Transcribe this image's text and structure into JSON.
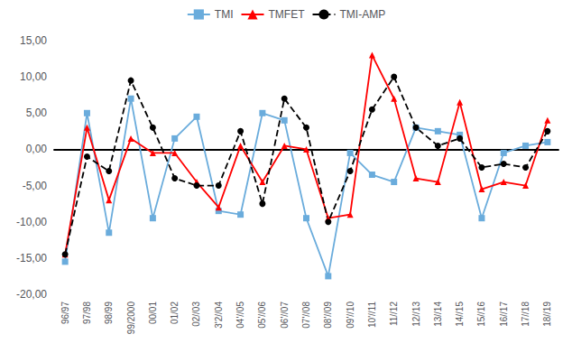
{
  "chart_data": {
    "type": "line",
    "categories": [
      "96/97",
      "97/98",
      "98/99",
      "99/2000",
      "00/01",
      "01/02",
      "02//03",
      "3'2//04",
      "04'//05",
      "05'//06",
      "06'//07",
      "07'//08",
      "08'//09",
      "09'//10",
      "10'//11",
      "11//12",
      "12//13",
      "13//14",
      "14//15",
      "15//16",
      "16//17",
      "17//18",
      "18//19"
    ],
    "series": [
      {
        "name": "TMI",
        "color": "#6aacdc",
        "marker": "square",
        "line_style": "solid",
        "values": [
          -15.5,
          5.0,
          -11.5,
          7.0,
          -9.5,
          1.5,
          4.5,
          -8.5,
          -9.0,
          5.0,
          4.0,
          -9.5,
          -17.5,
          -0.5,
          -3.5,
          -4.5,
          3.0,
          2.5,
          2.0,
          -9.5,
          -0.5,
          0.5,
          1.0
        ]
      },
      {
        "name": "TMFET",
        "color": "#ff0000",
        "marker": "triangle",
        "line_style": "solid",
        "values": [
          -14.5,
          3.0,
          -7.0,
          1.5,
          -0.5,
          -0.5,
          -4.5,
          -8.0,
          0.5,
          -4.5,
          0.5,
          0.0,
          -9.5,
          -9.0,
          13.0,
          7.0,
          -4.0,
          -4.5,
          6.5,
          -5.5,
          -4.5,
          -5.0,
          4.0
        ]
      },
      {
        "name": "TMI-AMP",
        "color": "#000000",
        "marker": "circle",
        "line_style": "dashed",
        "values": [
          -14.5,
          -1.0,
          -3.0,
          9.5,
          3.0,
          -4.0,
          -5.0,
          -5.0,
          2.5,
          -7.5,
          7.0,
          3.0,
          -10.0,
          -3.0,
          5.5,
          10.0,
          3.0,
          0.5,
          1.5,
          -2.5,
          -2.0,
          -2.5,
          2.5
        ]
      }
    ],
    "ylim": [
      -20,
      15
    ],
    "yticks": [
      {
        "value": -20,
        "label": "-20,00"
      },
      {
        "value": -15,
        "label": "-15,00"
      },
      {
        "value": -10,
        "label": "-10,00"
      },
      {
        "value": -5,
        "label": "-5,00"
      },
      {
        "value": 0,
        "label": "0,00"
      },
      {
        "value": 5,
        "label": "5,00"
      },
      {
        "value": 10,
        "label": "10,00"
      },
      {
        "value": 15,
        "label": "15,00"
      }
    ],
    "grid": false,
    "legend": "top"
  }
}
